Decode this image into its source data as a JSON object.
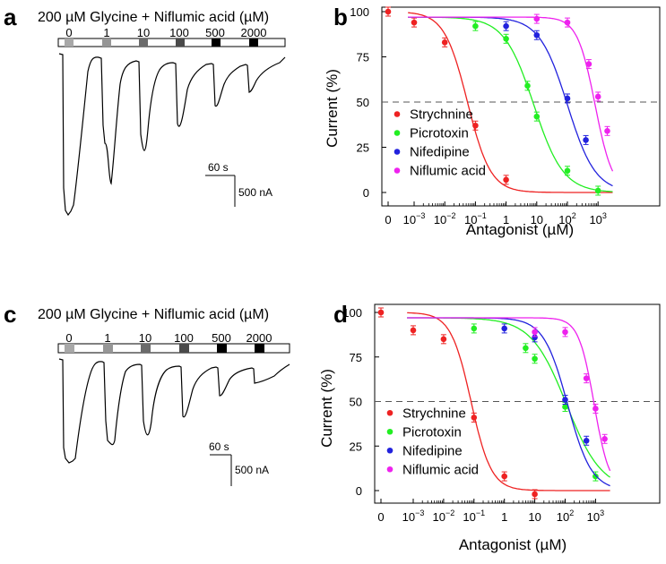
{
  "panels": {
    "a": {
      "letter": "a"
    },
    "b": {
      "letter": "b"
    },
    "c": {
      "letter": "c"
    },
    "d": {
      "letter": "d"
    }
  },
  "traces": {
    "title": "200 µM Glycine + Niflumic acid (µM)",
    "concentrations": [
      "0",
      "1",
      "10",
      "100",
      "500",
      "2000"
    ],
    "block_colors": [
      "#a8a8a8",
      "#969696",
      "#6b6b6b",
      "#4a4a4a",
      "#000000",
      "#000000"
    ],
    "scale_time": "60 s",
    "scale_current": "500 nA"
  },
  "chart_data": [
    {
      "panel": "b",
      "type": "scatter",
      "xlabel": "Antagonist (µM)",
      "ylabel": "Current (%)",
      "x_scale": "log",
      "x_ticks": [
        "0",
        "10-3",
        "10-2",
        "10-1",
        "1",
        "10",
        "102",
        "103"
      ],
      "y_ticks": [
        0,
        25,
        50,
        75,
        100
      ],
      "ylim": [
        -5,
        105
      ],
      "reference_line": 50,
      "legend_position": "bottom-left",
      "series": [
        {
          "name": "Strychnine",
          "color": "#ee2222",
          "ic50": 0.055,
          "hill": 1.15,
          "points": [
            {
              "x": 0,
              "y": 100
            },
            {
              "x": 0.001,
              "y": 94
            },
            {
              "x": 0.01,
              "y": 83
            },
            {
              "x": 0.1,
              "y": 37
            },
            {
              "x": 1,
              "y": 7
            }
          ]
        },
        {
          "name": "Picrotoxin",
          "color": "#22ee22",
          "ic50": 8,
          "hill": 0.9,
          "points": [
            {
              "x": 0.1,
              "y": 92
            },
            {
              "x": 1,
              "y": 85
            },
            {
              "x": 5,
              "y": 59
            },
            {
              "x": 10,
              "y": 42
            },
            {
              "x": 100,
              "y": 12
            },
            {
              "x": 1000,
              "y": 1
            }
          ]
        },
        {
          "name": "Nifedipine",
          "color": "#2222dd",
          "ic50": 100,
          "hill": 0.95,
          "points": [
            {
              "x": 1,
              "y": 92
            },
            {
              "x": 10,
              "y": 87
            },
            {
              "x": 100,
              "y": 52
            },
            {
              "x": 400,
              "y": 29
            }
          ]
        },
        {
          "name": "Niflumic acid",
          "color": "#ee22ee",
          "ic50": 800,
          "hill": 1.5,
          "points": [
            {
              "x": 10,
              "y": 96
            },
            {
              "x": 100,
              "y": 94
            },
            {
              "x": 500,
              "y": 71
            },
            {
              "x": 1000,
              "y": 53
            },
            {
              "x": 2000,
              "y": 34
            }
          ]
        }
      ]
    },
    {
      "panel": "d",
      "type": "scatter",
      "xlabel": "Antagonist (µM)",
      "ylabel": "Current (%)",
      "x_scale": "log",
      "x_ticks": [
        "0",
        "10-3",
        "10-2",
        "10-1",
        "1",
        "10",
        "102",
        "103"
      ],
      "y_ticks": [
        0,
        25,
        50,
        75,
        100
      ],
      "ylim": [
        -5,
        105
      ],
      "reference_line": 50,
      "legend_position": "bottom-left",
      "series": [
        {
          "name": "Strychnine",
          "color": "#ee2222",
          "ic50": 0.08,
          "hill": 1.3,
          "points": [
            {
              "x": 0,
              "y": 100
            },
            {
              "x": 0.001,
              "y": 90
            },
            {
              "x": 0.01,
              "y": 85
            },
            {
              "x": 0.1,
              "y": 41
            },
            {
              "x": 1,
              "y": 8
            },
            {
              "x": 10,
              "y": -2
            }
          ]
        },
        {
          "name": "Picrotoxin",
          "color": "#22ee22",
          "ic50": 110,
          "hill": 0.75,
          "points": [
            {
              "x": 0.1,
              "y": 91
            },
            {
              "x": 5,
              "y": 80
            },
            {
              "x": 10,
              "y": 74
            },
            {
              "x": 100,
              "y": 47
            },
            {
              "x": 1000,
              "y": 8
            }
          ]
        },
        {
          "name": "Nifedipine",
          "color": "#2222dd",
          "ic50": 120,
          "hill": 1.1,
          "points": [
            {
              "x": 1,
              "y": 91
            },
            {
              "x": 10,
              "y": 86
            },
            {
              "x": 100,
              "y": 51
            },
            {
              "x": 500,
              "y": 28
            }
          ]
        },
        {
          "name": "Niflumic acid",
          "color": "#ee22ee",
          "ic50": 900,
          "hill": 1.7,
          "points": [
            {
              "x": 10,
              "y": 89
            },
            {
              "x": 100,
              "y": 89
            },
            {
              "x": 500,
              "y": 63
            },
            {
              "x": 1000,
              "y": 46
            },
            {
              "x": 2000,
              "y": 29
            }
          ]
        }
      ]
    }
  ]
}
